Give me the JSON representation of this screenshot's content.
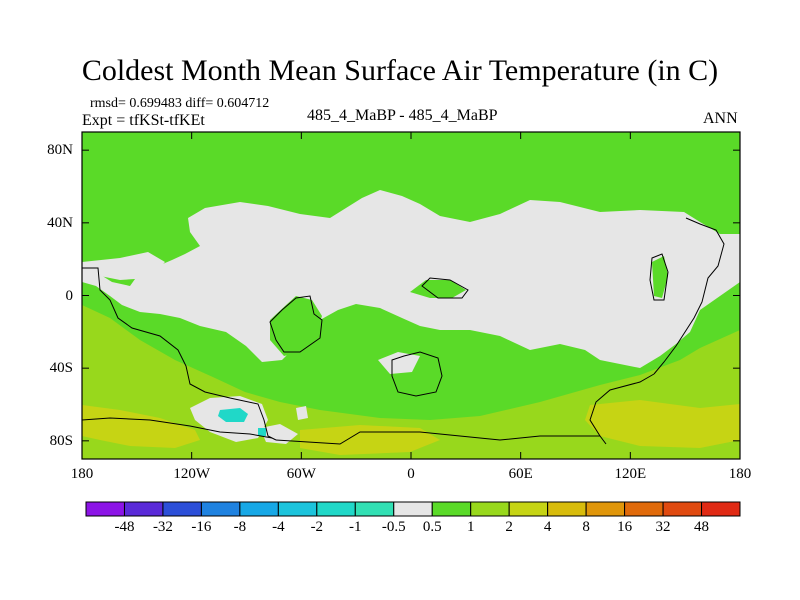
{
  "title": "Coldest Month Mean Surface Air Temperature (in C)",
  "stats_text": "rmsd= 0.699483 diff= 0.604712",
  "expt_text": "Expt = tfKSt-tfKEt",
  "center_label": "485_4_MaBP - 485_4_MaBP",
  "season_label": "ANN",
  "chart_data": {
    "type": "heatmap",
    "title": "Coldest Month Mean Surface Air Temperature (in C)",
    "projection": "cylindrical-equidistant",
    "x_range": [
      -180,
      180
    ],
    "y_range": [
      -90,
      90
    ],
    "x_ticks": [
      {
        "value": -180,
        "label": "180"
      },
      {
        "value": -120,
        "label": "120W"
      },
      {
        "value": -60,
        "label": "60W"
      },
      {
        "value": 0,
        "label": "0"
      },
      {
        "value": 60,
        "label": "60E"
      },
      {
        "value": 120,
        "label": "120E"
      },
      {
        "value": 180,
        "label": "180"
      }
    ],
    "y_ticks": [
      {
        "value": 80,
        "label": "80N"
      },
      {
        "value": 40,
        "label": "40N"
      },
      {
        "value": 0,
        "label": "0"
      },
      {
        "value": -40,
        "label": "40S"
      },
      {
        "value": -80,
        "label": "80S"
      }
    ],
    "colorbar": {
      "levels": [
        "-48",
        "-32",
        "-16",
        "-8",
        "-4",
        "-2",
        "-1",
        "-0.5",
        "0.5",
        "1",
        "2",
        "4",
        "8",
        "16",
        "32",
        "48"
      ],
      "colors": [
        "#8c14e6",
        "#5a2ad8",
        "#2c4fd8",
        "#1f82e0",
        "#17a8e6",
        "#1cc4dc",
        "#20d8c8",
        "#32e0b4",
        "#e6e6e6",
        "#5ada28",
        "#98d81c",
        "#c6d414",
        "#d8bc0c",
        "#e0960a",
        "#e06a0a",
        "#e04a10",
        "#e02a14"
      ]
    },
    "field_classes": {
      "background": "0.5 to 1",
      "near_zero_regions": "-0.5 to 0.5",
      "warm_southern_regions": "1 to 2",
      "warmest_southern_regions": "2 to 4",
      "cold_pocket_southern_pacific": "-2 to -1"
    }
  }
}
